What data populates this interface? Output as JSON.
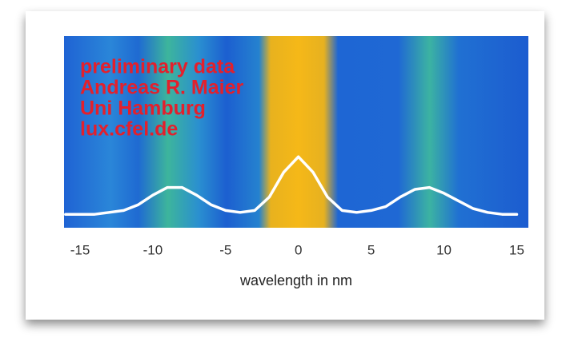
{
  "chart_data": {
    "type": "line",
    "annotations": [
      "preliminary data",
      "Andreas R. Maier",
      "Uni Hamburg",
      "lux.cfel.de"
    ],
    "xlabel": "wavelength in nm",
    "x": [
      -16,
      -15,
      -14,
      -13,
      -12,
      -11,
      -10,
      -9,
      -8,
      -7,
      -6,
      -5,
      -4,
      -3,
      -2,
      -1,
      0,
      1,
      2,
      3,
      4,
      5,
      6,
      7,
      8,
      9,
      10,
      11,
      12,
      13,
      14,
      15
    ],
    "values": [
      0.07,
      0.07,
      0.07,
      0.08,
      0.09,
      0.12,
      0.17,
      0.21,
      0.21,
      0.17,
      0.12,
      0.09,
      0.08,
      0.09,
      0.16,
      0.29,
      0.37,
      0.29,
      0.16,
      0.09,
      0.08,
      0.09,
      0.11,
      0.16,
      0.2,
      0.21,
      0.18,
      0.14,
      0.1,
      0.08,
      0.07,
      0.07
    ],
    "color": "#ffffff",
    "xlim": [
      -16.1,
      15.8
    ],
    "ylim": [
      0,
      1
    ],
    "xticks": [
      -15,
      -10,
      -5,
      0,
      5,
      10,
      15
    ]
  }
}
